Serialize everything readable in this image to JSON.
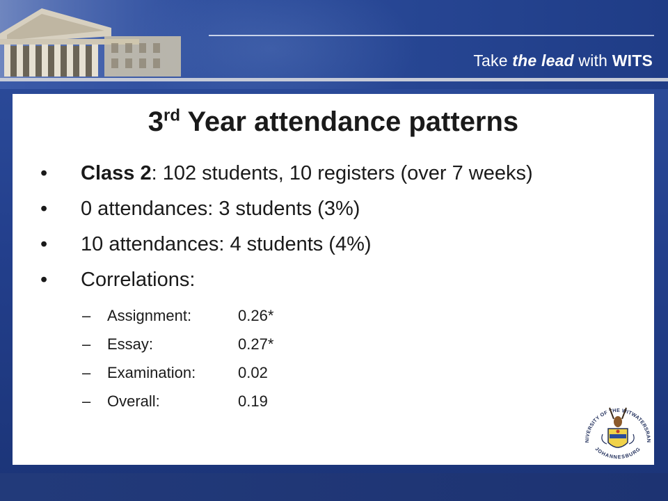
{
  "header": {
    "tagline_pre": "Take ",
    "tagline_em": "the lead",
    "tagline_mid": " with ",
    "tagline_brand": "WITS"
  },
  "slide": {
    "title_num": "3",
    "title_sup": "rd",
    "title_rest": " Year attendance patterns",
    "bullets": [
      {
        "key": "Class 2",
        "text": ": 102 students, 10 registers (over 7 weeks)"
      },
      {
        "text": "0 attendances: 3 students (3%)"
      },
      {
        "text": "10 attendances:  4 students (4%)"
      },
      {
        "text": "Correlations:"
      }
    ],
    "correlations": [
      {
        "label": "Assignment:",
        "value": "0.26*"
      },
      {
        "label": "Essay:",
        "value": "0.27*"
      },
      {
        "label": "Examination:",
        "value": "0.02"
      },
      {
        "label": "Overall:",
        "value": "0.19"
      }
    ]
  },
  "seal": {
    "text_top": "UNIVERSITY OF THE WITWATERSRAND",
    "text_bottom": "JOHANNESBURG"
  },
  "colors": {
    "background": "#233f8c",
    "panel": "#ffffff",
    "text": "#1a1a1a"
  }
}
